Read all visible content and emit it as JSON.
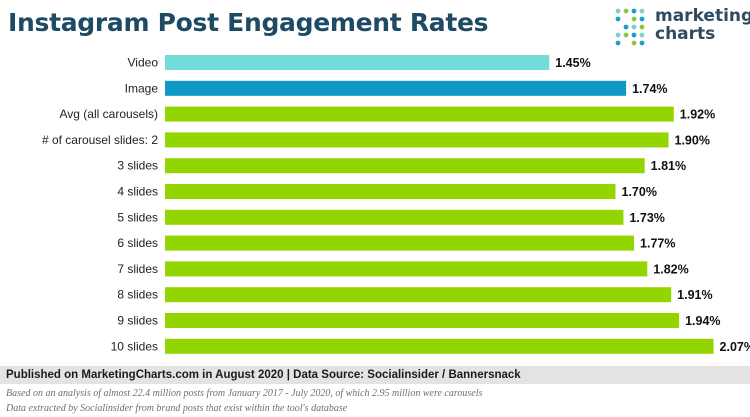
{
  "header": {
    "title": "Instagram Post Engagement Rates"
  },
  "logo": {
    "line1": "marketing",
    "line2": "charts",
    "dot_colors": [
      "#7fd0c8",
      "#8cc63f",
      "#1a9fc9"
    ]
  },
  "chart_data": {
    "type": "bar",
    "orientation": "horizontal",
    "title": "Instagram Post Engagement Rates",
    "categories": [
      "Video",
      "Image",
      "Avg (all carousels)",
      "# of carousel slides: 2",
      "3 slides",
      "4 slides",
      "5 slides",
      "6 slides",
      "7 slides",
      "8 slides",
      "9 slides",
      "10 slides"
    ],
    "values": [
      1.45,
      1.74,
      1.92,
      1.9,
      1.81,
      1.7,
      1.73,
      1.77,
      1.82,
      1.91,
      1.94,
      2.07
    ],
    "value_labels": [
      "1.45%",
      "1.74%",
      "1.92%",
      "1.90%",
      "1.81%",
      "1.70%",
      "1.73%",
      "1.77%",
      "1.82%",
      "1.91%",
      "1.94%",
      "2.07%"
    ],
    "colors": [
      "#72ddd8",
      "#0f97c6",
      "#93d500",
      "#93d500",
      "#93d500",
      "#93d500",
      "#93d500",
      "#93d500",
      "#93d500",
      "#93d500",
      "#93d500",
      "#93d500"
    ],
    "xlim": [
      0,
      2.2
    ],
    "xlabel": "",
    "ylabel": "",
    "grid": false
  },
  "footer": {
    "source": "Published on MarketingCharts.com in August 2020 | Data Source: Socialinsider / Bannersnack",
    "note1": "Based on an analysis of almost 22.4 million posts from January 2017 - July 2020, of which 2.95 million were carousels",
    "note2": "Data extracted by Socialinsider from brand posts that exist within the tool's database"
  }
}
